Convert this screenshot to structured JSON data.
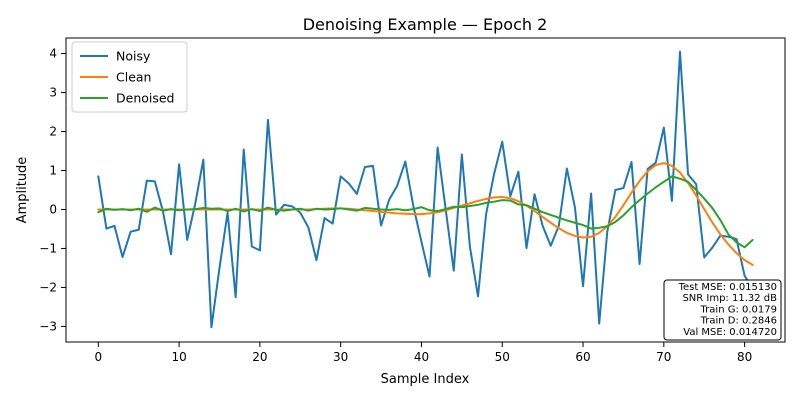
{
  "chart_data": {
    "type": "line",
    "title": "Denoising Example — Epoch 2",
    "xlabel": "Sample Index",
    "ylabel": "Amplitude",
    "xlim": [
      -4,
      85
    ],
    "ylim": [
      -3.4,
      4.4
    ],
    "xticks": [
      0,
      10,
      20,
      30,
      40,
      50,
      60,
      70,
      80
    ],
    "yticks": [
      -3,
      -2,
      -1,
      0,
      1,
      2,
      3,
      4
    ],
    "grid": false,
    "legend_position": "top-left",
    "series": [
      {
        "name": "Noisy",
        "color": "#1f77b4",
        "x": [
          0,
          1,
          2,
          3,
          4,
          5,
          6,
          7,
          8,
          9,
          10,
          11,
          12,
          13,
          14,
          15,
          16,
          17,
          18,
          19,
          20,
          21,
          22,
          23,
          24,
          25,
          26,
          27,
          28,
          29,
          30,
          31,
          32,
          33,
          34,
          35,
          36,
          37,
          38,
          39,
          40,
          41,
          42,
          43,
          44,
          45,
          46,
          47,
          48,
          49,
          50,
          51,
          52,
          53,
          54,
          55,
          56,
          57,
          58,
          59,
          60,
          61,
          62,
          63,
          64,
          65,
          66,
          67,
          68,
          69,
          70,
          71,
          72,
          73,
          74,
          75,
          76,
          77,
          78,
          79,
          80,
          81
        ],
        "values": [
          0.85,
          -0.49,
          -0.42,
          -1.22,
          -0.57,
          -0.52,
          0.74,
          0.72,
          -0.05,
          -1.15,
          1.16,
          -0.78,
          0.15,
          1.28,
          -3.02,
          -1.5,
          -0.08,
          -2.25,
          1.54,
          -0.95,
          -1.05,
          2.3,
          -0.13,
          0.12,
          0.08,
          -0.08,
          -0.46,
          -1.3,
          -0.22,
          -0.36,
          0.85,
          0.67,
          0.4,
          1.09,
          1.12,
          -0.41,
          0.25,
          0.61,
          1.23,
          0.08,
          -0.83,
          -1.72,
          1.59,
          0.0,
          -1.57,
          1.41,
          -0.96,
          -2.23,
          -0.12,
          0.92,
          1.74,
          0.34,
          0.97,
          -0.99,
          0.39,
          -0.42,
          -0.93,
          -0.42,
          1.05,
          0.05,
          -1.97,
          0.41,
          -2.93,
          -0.57,
          0.5,
          0.55,
          1.22,
          -1.4,
          1.04,
          1.2,
          2.1,
          0.22,
          4.05,
          0.9,
          0.65,
          -1.23,
          -0.98,
          -0.67,
          -0.7,
          -0.76,
          -1.7,
          -2.05
        ]
      },
      {
        "name": "Clean",
        "color": "#ff7f0e",
        "x": [
          0,
          1,
          2,
          3,
          4,
          5,
          6,
          7,
          8,
          9,
          10,
          11,
          12,
          13,
          14,
          15,
          16,
          17,
          18,
          19,
          20,
          21,
          22,
          23,
          24,
          25,
          26,
          27,
          28,
          29,
          30,
          31,
          32,
          33,
          34,
          35,
          36,
          37,
          38,
          39,
          40,
          41,
          42,
          43,
          44,
          45,
          46,
          47,
          48,
          49,
          50,
          51,
          52,
          53,
          54,
          55,
          56,
          57,
          58,
          59,
          60,
          61,
          62,
          63,
          64,
          65,
          66,
          67,
          68,
          69,
          70,
          71,
          72,
          73,
          74,
          75,
          76,
          77,
          78,
          79,
          80,
          81
        ],
        "values": [
          0.0,
          0.0,
          0.0,
          0.0,
          0.0,
          0.0,
          0.0,
          0.0,
          0.0,
          0.0,
          0.0,
          0.0,
          0.0,
          0.0,
          0.0,
          0.0,
          0.0,
          0.0,
          0.0,
          0.0,
          0.0,
          0.0,
          0.0,
          0.0,
          0.0,
          0.0,
          0.0,
          0.01,
          0.02,
          0.03,
          0.03,
          0.02,
          0.0,
          -0.02,
          -0.04,
          -0.06,
          -0.08,
          -0.1,
          -0.11,
          -0.12,
          -0.12,
          -0.1,
          -0.07,
          -0.02,
          0.04,
          0.1,
          0.16,
          0.22,
          0.27,
          0.31,
          0.32,
          0.29,
          0.21,
          0.1,
          -0.04,
          -0.19,
          -0.34,
          -0.48,
          -0.6,
          -0.68,
          -0.72,
          -0.7,
          -0.6,
          -0.43,
          -0.19,
          0.11,
          0.43,
          0.73,
          0.98,
          1.14,
          1.19,
          1.12,
          0.95,
          0.68,
          0.36,
          0.01,
          -0.33,
          -0.64,
          -0.9,
          -1.12,
          -1.3,
          -1.42
        ]
      },
      {
        "name": "Denoised",
        "color": "#2ca02c",
        "x": [
          0,
          1,
          2,
          3,
          4,
          5,
          6,
          7,
          8,
          9,
          10,
          11,
          12,
          13,
          14,
          15,
          16,
          17,
          18,
          19,
          20,
          21,
          22,
          23,
          24,
          25,
          26,
          27,
          28,
          29,
          30,
          31,
          32,
          33,
          34,
          35,
          36,
          37,
          38,
          39,
          40,
          41,
          42,
          43,
          44,
          45,
          46,
          47,
          48,
          49,
          50,
          51,
          52,
          53,
          54,
          55,
          56,
          57,
          58,
          59,
          60,
          61,
          62,
          63,
          64,
          65,
          66,
          67,
          68,
          69,
          70,
          71,
          72,
          73,
          74,
          75,
          76,
          77,
          78,
          79,
          80,
          81
        ],
        "values": [
          -0.07,
          0.02,
          -0.01,
          0.01,
          -0.02,
          0.02,
          -0.06,
          0.05,
          -0.03,
          0.01,
          -0.02,
          0.0,
          0.01,
          0.04,
          0.02,
          0.03,
          -0.04,
          0.02,
          -0.05,
          0.01,
          -0.04,
          0.05,
          -0.01,
          -0.03,
          0.0,
          0.02,
          -0.03,
          0.02,
          0.0,
          0.01,
          0.03,
          0.0,
          -0.03,
          0.04,
          0.02,
          0.0,
          -0.01,
          0.01,
          -0.02,
          0.01,
          0.06,
          -0.02,
          -0.04,
          0.01,
          0.07,
          0.06,
          0.09,
          0.12,
          0.17,
          0.2,
          0.24,
          0.23,
          0.13,
          0.11,
          0.02,
          -0.07,
          -0.14,
          -0.21,
          -0.28,
          -0.34,
          -0.4,
          -0.49,
          -0.47,
          -0.43,
          -0.32,
          -0.15,
          0.06,
          0.24,
          0.41,
          0.57,
          0.71,
          0.85,
          0.79,
          0.71,
          0.5,
          0.28,
          0.04,
          -0.27,
          -0.64,
          -0.84,
          -0.97,
          -0.78
        ]
      }
    ],
    "annotation": {
      "position": "bottom-right",
      "lines": [
        "Test MSE: 0.015130",
        "SNR Imp: 11.32 dB",
        "Train G: 0.0179",
        "Train D: 0.2846",
        "Val MSE: 0.014720"
      ]
    }
  }
}
